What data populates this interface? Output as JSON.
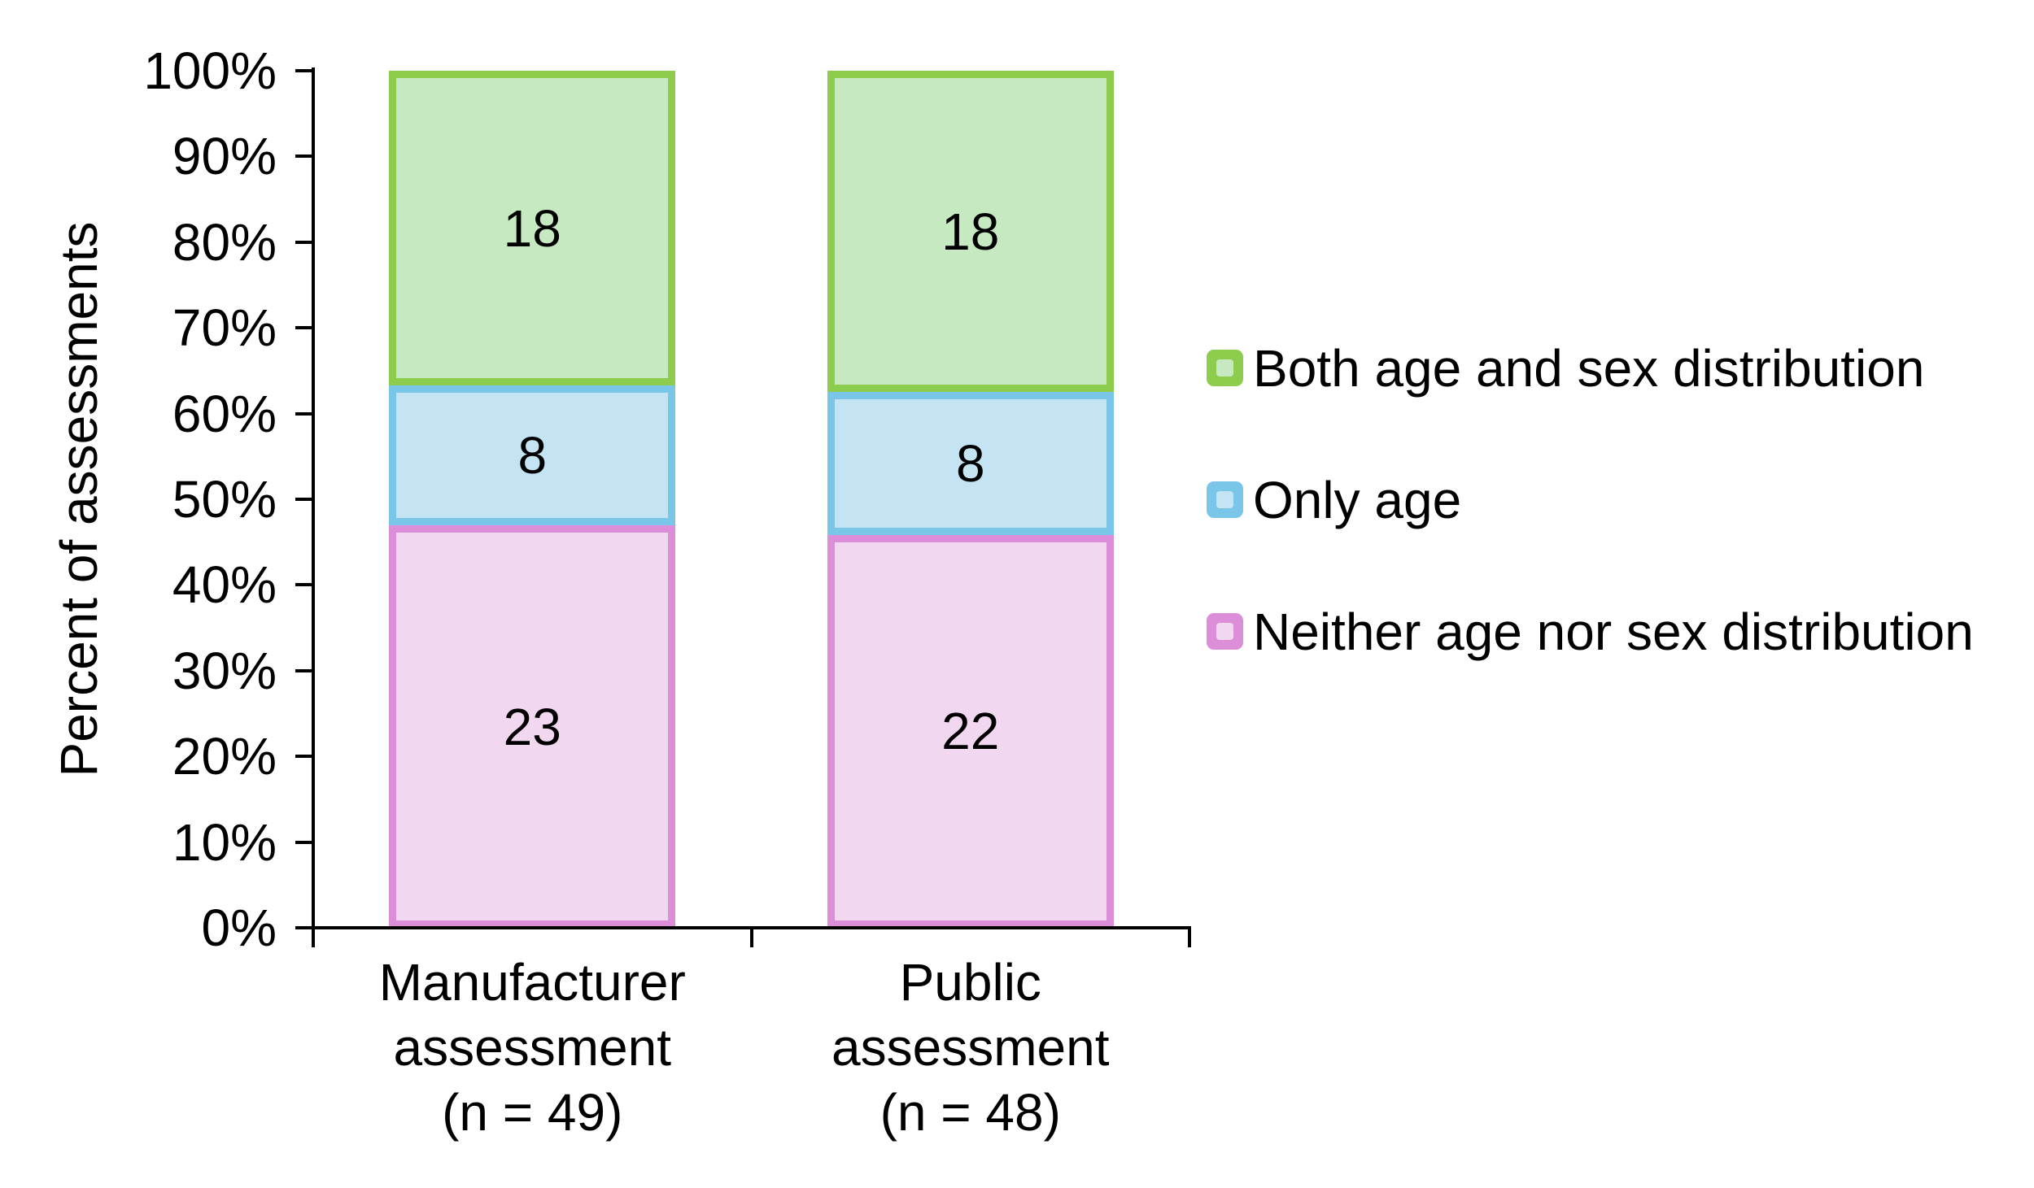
{
  "chart_data": {
    "type": "bar",
    "stacked": true,
    "title": "",
    "xlabel": "",
    "ylabel": "Percent of assessments",
    "ylim": [
      0,
      100
    ],
    "y_tick_labels": [
      "0%",
      "10%",
      "20%",
      "30%",
      "40%",
      "50%",
      "60%",
      "70%",
      "80%",
      "90%",
      "100%"
    ],
    "grid": false,
    "value_labels_shown": true,
    "value_mode": "segment counts; bar height = percent of column total",
    "categories": [
      {
        "label_lines": [
          "Manufacturer",
          "assessment",
          "(n = 49)"
        ],
        "total": 49
      },
      {
        "label_lines": [
          "Public",
          "assessment",
          "(n = 48)"
        ],
        "total": 48
      }
    ],
    "series": [
      {
        "name": "Neither age nor sex distribution",
        "values": [
          23,
          22
        ],
        "fill_color": "#F2D7F0",
        "border_color": "#DC8FD8"
      },
      {
        "name": "Only age",
        "values": [
          8,
          8
        ],
        "fill_color": "#C4E4F4",
        "border_color": "#79C6E9"
      },
      {
        "name": "Both age and sex distribution",
        "values": [
          18,
          18
        ],
        "fill_color": "#C6E9C1",
        "border_color": "#8DCC4C"
      }
    ],
    "legend": {
      "position": "right",
      "order": [
        "Both age and sex distribution",
        "Only age",
        "Neither age nor sex distribution"
      ]
    },
    "colors": {
      "axis": "#000000",
      "text": "#000000",
      "background": "#FFFFFF"
    }
  }
}
